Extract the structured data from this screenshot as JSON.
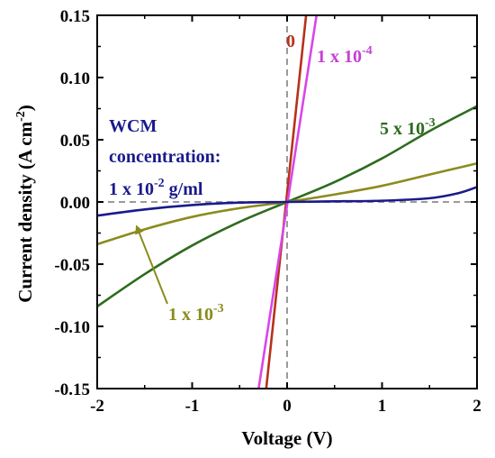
{
  "chart_data": {
    "type": "line",
    "xlabel": "Voltage (V)",
    "ylabel": "Current density (A cm",
    "ylabel_sup": "-2",
    "ylabel_close": ")",
    "xlim": [
      -2,
      2
    ],
    "ylim": [
      -0.15,
      0.15
    ],
    "xticks": [
      -2,
      -1,
      0,
      1,
      2
    ],
    "xtick_labels": [
      "-2",
      "-1",
      "0",
      "1",
      "2"
    ],
    "yticks": [
      -0.15,
      -0.1,
      -0.05,
      0.0,
      0.05,
      0.1,
      0.15
    ],
    "ytick_labels": [
      "-0.15",
      "-0.10",
      "-0.05",
      "0.00",
      "0.05",
      "0.10",
      "0.15"
    ],
    "reference_lines": {
      "x": 0,
      "y": 0,
      "color": "#9a9a9a",
      "style": "dashed"
    },
    "series": [
      {
        "name": "0",
        "color": "#b5321b",
        "width": 2.6,
        "x": [
          -0.22,
          0.2
        ],
        "y": [
          -0.15,
          0.15
        ]
      },
      {
        "name": "1 x 10-4",
        "color": "#d946e8",
        "width": 2.6,
        "x": [
          -0.3,
          0.31
        ],
        "y": [
          -0.15,
          0.15
        ]
      },
      {
        "name": "5 x 10-3",
        "color": "#2e6b1f",
        "width": 2.6,
        "x": [
          -2.0,
          -1.5,
          -1.0,
          -0.5,
          0.0,
          0.5,
          1.0,
          1.5,
          2.0
        ],
        "y": [
          -0.084,
          -0.058,
          -0.035,
          -0.016,
          0.0,
          0.016,
          0.035,
          0.057,
          0.077
        ]
      },
      {
        "name": "1 x 10-3",
        "color": "#8b8b1e",
        "width": 2.6,
        "x": [
          -2.0,
          -1.5,
          -1.0,
          -0.5,
          0.0,
          0.5,
          1.0,
          1.5,
          2.0
        ],
        "y": [
          -0.034,
          -0.022,
          -0.012,
          -0.005,
          0.0,
          0.006,
          0.013,
          0.022,
          0.031
        ]
      },
      {
        "name": "1 x 10-2 g/ml",
        "color": "#1a1a8c",
        "width": 2.6,
        "x": [
          -2.0,
          -1.5,
          -1.0,
          -0.5,
          0.0,
          0.5,
          1.0,
          1.5,
          1.8,
          2.0
        ],
        "y": [
          -0.011,
          -0.006,
          -0.0025,
          -0.0005,
          0.0,
          0.0005,
          0.001,
          0.003,
          0.007,
          0.012
        ]
      }
    ],
    "annotations": {
      "label_0": {
        "text": "0",
        "color": "#b5321b"
      },
      "label_1e4_base": "1 x 10",
      "label_1e4_exp": "-4",
      "label_1e4_color": "#c63fd6",
      "label_5e3_base": "5 x 10",
      "label_5e3_exp": "-3",
      "label_5e3_color": "#2e6b1f",
      "label_1e3_base": "1 x 10",
      "label_1e3_exp": "-3",
      "label_1e3_color": "#8b8b1e",
      "wcm_line1": "WCM",
      "wcm_line2": "concentration:",
      "wcm_line3_base": "1 x 10",
      "wcm_line3_exp": "-2",
      "wcm_line3_unit": " g/ml",
      "wcm_color": "#1a1a8c",
      "arrow_color": "#8b8b1e"
    }
  }
}
